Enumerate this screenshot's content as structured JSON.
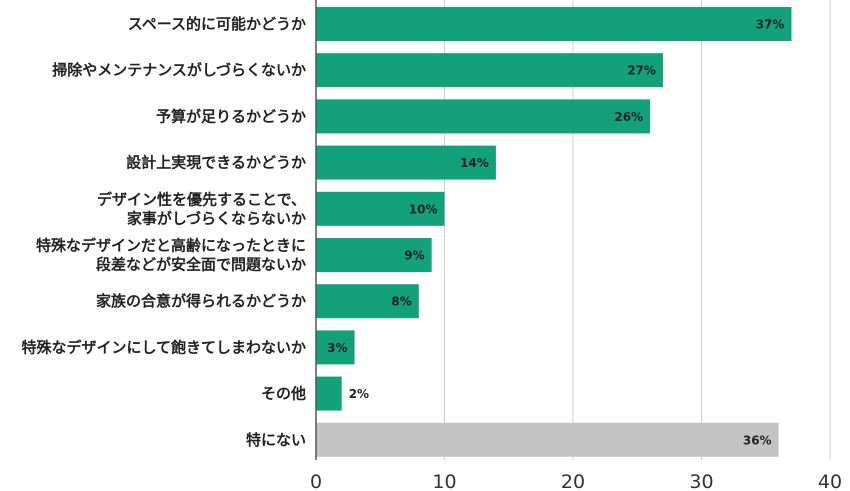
{
  "chart_data": {
    "type": "bar",
    "orientation": "horizontal",
    "categories": [
      [
        "スペース的に可能かどうか"
      ],
      [
        "掃除やメンテナンスがしづらくないか"
      ],
      [
        "予算が足りるかどうか"
      ],
      [
        "設計上実現できるかどうか"
      ],
      [
        "デザイン性を優先することで、",
        "家事がしづらくならないか"
      ],
      [
        "特殊なデザインだと高齢になったときに",
        "段差などが安全面で問題ないか"
      ],
      [
        "家族の合意が得られるかどうか"
      ],
      [
        "特殊なデザインにして飽きてしまわないか"
      ],
      [
        "その他"
      ],
      [
        "特にない"
      ]
    ],
    "values": [
      37,
      27,
      26,
      14,
      10,
      9,
      8,
      3,
      2,
      36
    ],
    "value_labels": [
      "37%",
      "27%",
      "26%",
      "14%",
      "10%",
      "9%",
      "8%",
      "3%",
      "2%",
      "36%"
    ],
    "bar_colors": [
      "#13a17b",
      "#13a17b",
      "#13a17b",
      "#13a17b",
      "#13a17b",
      "#13a17b",
      "#13a17b",
      "#13a17b",
      "#13a17b",
      "#c3c3c3"
    ],
    "xlim": [
      0,
      40
    ],
    "xticks": [
      0,
      10,
      20,
      30,
      40
    ],
    "grid": true,
    "title": "",
    "xlabel": "",
    "ylabel": ""
  }
}
